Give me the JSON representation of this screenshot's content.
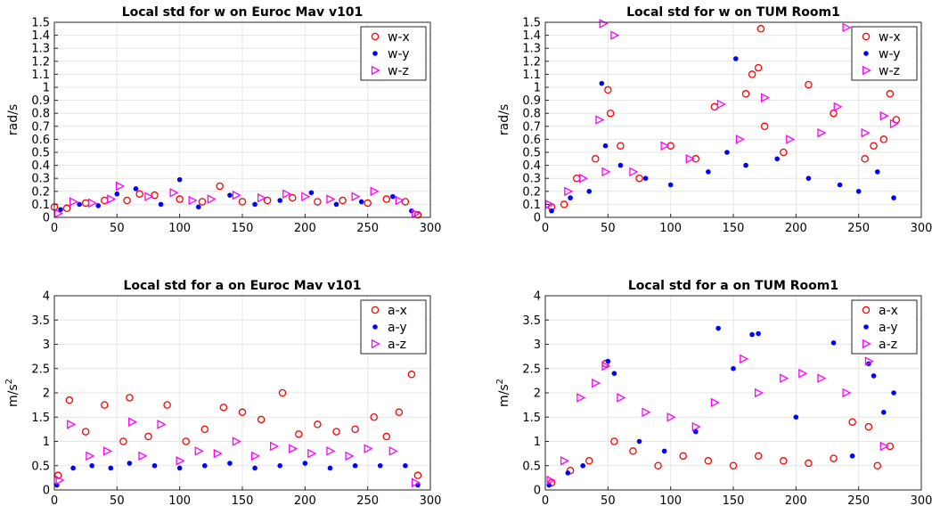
{
  "figure": {
    "background": "#ffffff"
  },
  "series_style": {
    "x": {
      "color": "#ff0000",
      "marker": "circle-open"
    },
    "y": {
      "color": "#0000ff",
      "marker": "dot-filled"
    },
    "z": {
      "color": "#ff00ff",
      "marker": "triangle-right-open"
    }
  },
  "chart_data": [
    {
      "id": "w-euroc",
      "type": "scatter",
      "title": "Local std for w on Euroc Mav v101",
      "ylabel": "rad/s",
      "xlabel": "",
      "xlim": [
        0,
        300
      ],
      "ylim": [
        0,
        1.5
      ],
      "xticks": [
        0,
        50,
        100,
        150,
        200,
        250,
        300
      ],
      "yticks": [
        0,
        0.1,
        0.2,
        0.3,
        0.4,
        0.5,
        0.6,
        0.7,
        0.8,
        0.9,
        1,
        1.1,
        1.2,
        1.3,
        1.4,
        1.5
      ],
      "grid": true,
      "legend": "top-right",
      "series": [
        {
          "name": "w-x",
          "key": "x",
          "x": [
            0,
            10,
            25,
            40,
            58,
            68,
            80,
            100,
            118,
            132,
            150,
            170,
            190,
            210,
            230,
            250,
            265,
            280,
            290
          ],
          "y": [
            0.08,
            0.07,
            0.11,
            0.13,
            0.13,
            0.18,
            0.17,
            0.14,
            0.12,
            0.24,
            0.12,
            0.13,
            0.15,
            0.12,
            0.13,
            0.11,
            0.14,
            0.12,
            0.02
          ]
        },
        {
          "name": "w-y",
          "key": "y",
          "x": [
            5,
            20,
            35,
            50,
            65,
            85,
            100,
            115,
            140,
            160,
            180,
            205,
            225,
            245,
            270,
            285
          ],
          "y": [
            0.06,
            0.1,
            0.09,
            0.18,
            0.22,
            0.1,
            0.29,
            0.08,
            0.17,
            0.1,
            0.13,
            0.19,
            0.1,
            0.12,
            0.16,
            0.05
          ]
        },
        {
          "name": "w-z",
          "key": "z",
          "x": [
            3,
            15,
            30,
            45,
            52,
            75,
            95,
            110,
            125,
            145,
            165,
            185,
            200,
            220,
            240,
            255,
            275,
            288
          ],
          "y": [
            0.03,
            0.12,
            0.11,
            0.14,
            0.24,
            0.16,
            0.19,
            0.13,
            0.14,
            0.17,
            0.15,
            0.18,
            0.16,
            0.14,
            0.16,
            0.2,
            0.13,
            0.03
          ]
        }
      ]
    },
    {
      "id": "w-tum",
      "type": "scatter",
      "title": "Local std for w on TUM Room1",
      "ylabel": "rad/s",
      "xlabel": "",
      "xlim": [
        0,
        300
      ],
      "ylim": [
        0,
        1.5
      ],
      "xticks": [
        0,
        50,
        100,
        150,
        200,
        250,
        300
      ],
      "yticks": [
        0,
        0.1,
        0.2,
        0.3,
        0.4,
        0.5,
        0.6,
        0.7,
        0.8,
        0.9,
        1,
        1.1,
        1.2,
        1.3,
        1.4,
        1.5
      ],
      "grid": true,
      "legend": "top-right",
      "series": [
        {
          "name": "w-x",
          "key": "x",
          "x": [
            5,
            15,
            25,
            40,
            50,
            52,
            60,
            75,
            100,
            120,
            135,
            160,
            165,
            170,
            172,
            175,
            190,
            210,
            230,
            255,
            262,
            270,
            275,
            280
          ],
          "y": [
            0.08,
            0.1,
            0.3,
            0.45,
            0.98,
            0.8,
            0.55,
            0.3,
            0.55,
            0.45,
            0.85,
            0.95,
            1.1,
            1.15,
            1.45,
            0.7,
            0.5,
            1.02,
            0.8,
            0.45,
            0.55,
            0.6,
            0.95,
            0.75
          ]
        },
        {
          "name": "w-y",
          "key": "y",
          "x": [
            5,
            20,
            35,
            45,
            48,
            60,
            80,
            100,
            130,
            145,
            152,
            160,
            185,
            210,
            235,
            250,
            265,
            278
          ],
          "y": [
            0.05,
            0.15,
            0.2,
            1.03,
            0.55,
            0.4,
            0.3,
            0.25,
            0.35,
            0.5,
            1.22,
            0.4,
            0.45,
            0.3,
            0.25,
            0.2,
            0.35,
            0.15
          ]
        },
        {
          "name": "w-z",
          "key": "z",
          "x": [
            3,
            18,
            30,
            43,
            46,
            48,
            55,
            70,
            95,
            115,
            140,
            155,
            175,
            195,
            220,
            233,
            240,
            255,
            270,
            278
          ],
          "y": [
            0.1,
            0.2,
            0.3,
            0.75,
            1.49,
            0.35,
            1.4,
            0.35,
            0.55,
            0.45,
            0.87,
            0.6,
            0.92,
            0.6,
            0.65,
            0.85,
            1.46,
            0.65,
            0.78,
            0.72
          ]
        }
      ]
    },
    {
      "id": "a-euroc",
      "type": "scatter",
      "title": "Local std for a on Euroc Mav v101",
      "ylabel": "m/s",
      "ylabel_sup": "2",
      "xlabel": "",
      "xlim": [
        0,
        300
      ],
      "ylim": [
        0,
        4
      ],
      "xticks": [
        0,
        50,
        100,
        150,
        200,
        250,
        300
      ],
      "yticks": [
        0,
        0.5,
        1,
        1.5,
        2,
        2.5,
        3,
        3.5,
        4
      ],
      "grid": true,
      "legend": "top-right",
      "series": [
        {
          "name": "a-x",
          "key": "x",
          "x": [
            3,
            12,
            25,
            40,
            55,
            60,
            75,
            90,
            105,
            120,
            135,
            150,
            165,
            182,
            195,
            210,
            225,
            240,
            255,
            265,
            275,
            285,
            290
          ],
          "y": [
            0.3,
            1.85,
            1.2,
            1.75,
            1.0,
            1.9,
            1.1,
            1.75,
            1.0,
            1.25,
            1.7,
            1.6,
            1.45,
            2.0,
            1.15,
            1.35,
            1.2,
            1.25,
            1.5,
            1.1,
            1.6,
            2.38,
            0.3
          ]
        },
        {
          "name": "a-y",
          "key": "y",
          "x": [
            2,
            15,
            30,
            45,
            60,
            80,
            100,
            120,
            140,
            160,
            180,
            200,
            220,
            240,
            260,
            280,
            290
          ],
          "y": [
            0.1,
            0.45,
            0.5,
            0.45,
            0.55,
            0.5,
            0.45,
            0.5,
            0.55,
            0.45,
            0.5,
            0.55,
            0.45,
            0.5,
            0.5,
            0.5,
            0.1
          ]
        },
        {
          "name": "a-z",
          "key": "z",
          "x": [
            4,
            13,
            28,
            42,
            62,
            70,
            85,
            100,
            115,
            130,
            145,
            160,
            175,
            190,
            205,
            220,
            235,
            250,
            270,
            288
          ],
          "y": [
            0.2,
            1.35,
            0.7,
            0.8,
            1.4,
            0.7,
            1.35,
            0.6,
            0.8,
            0.75,
            1.0,
            0.7,
            0.9,
            0.85,
            0.75,
            0.8,
            0.7,
            0.85,
            0.8,
            0.15
          ]
        }
      ]
    },
    {
      "id": "a-tum",
      "type": "scatter",
      "title": "Local std for a on TUM Room1",
      "ylabel": "m/s",
      "ylabel_sup": "2",
      "xlabel": "",
      "xlim": [
        0,
        300
      ],
      "ylim": [
        0,
        4
      ],
      "xticks": [
        0,
        50,
        100,
        150,
        200,
        250,
        300
      ],
      "yticks": [
        0,
        0.5,
        1,
        1.5,
        2,
        2.5,
        3,
        3.5,
        4
      ],
      "grid": true,
      "legend": "top-right",
      "series": [
        {
          "name": "a-x",
          "key": "x",
          "x": [
            5,
            20,
            35,
            48,
            55,
            70,
            90,
            110,
            130,
            150,
            170,
            190,
            210,
            230,
            245,
            258,
            265,
            275
          ],
          "y": [
            0.15,
            0.4,
            0.6,
            2.6,
            1.0,
            0.8,
            0.5,
            0.7,
            0.6,
            0.5,
            0.7,
            0.6,
            0.55,
            0.65,
            1.4,
            1.3,
            0.5,
            0.9
          ]
        },
        {
          "name": "a-y",
          "key": "y",
          "x": [
            3,
            18,
            30,
            50,
            55,
            75,
            95,
            120,
            138,
            150,
            165,
            170,
            200,
            230,
            245,
            258,
            262,
            270,
            278
          ],
          "y": [
            0.1,
            0.35,
            0.5,
            2.65,
            2.4,
            1.0,
            0.8,
            1.2,
            3.33,
            2.5,
            3.2,
            3.22,
            1.5,
            3.03,
            0.7,
            2.6,
            2.35,
            1.6,
            2.0
          ]
        },
        {
          "name": "a-z",
          "key": "z",
          "x": [
            4,
            15,
            28,
            40,
            48,
            60,
            80,
            100,
            120,
            135,
            158,
            170,
            190,
            205,
            220,
            240,
            258,
            270
          ],
          "y": [
            0.2,
            0.6,
            1.9,
            2.2,
            2.55,
            1.9,
            1.6,
            1.5,
            1.3,
            1.8,
            2.7,
            2.0,
            2.3,
            2.4,
            2.3,
            2.0,
            2.65,
            0.9
          ]
        }
      ]
    }
  ]
}
